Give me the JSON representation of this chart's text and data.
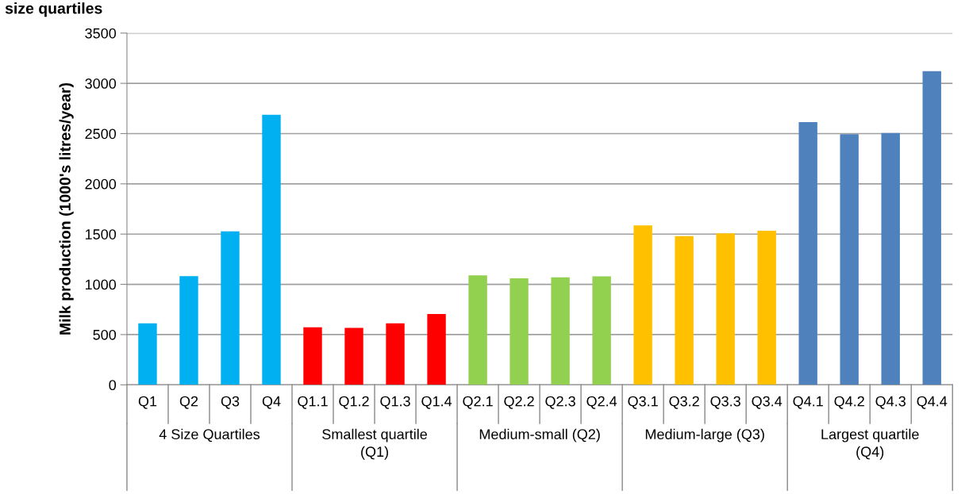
{
  "chart_data": {
    "type": "bar",
    "title": "size quartiles",
    "ylabel": "Milk production (1000's litres/year)",
    "categories": [
      "Q1",
      "Q2",
      "Q3",
      "Q4",
      "Q1.1",
      "Q1.2",
      "Q1.3",
      "Q1.4",
      "Q2.1",
      "Q2.2",
      "Q2.3",
      "Q2.4",
      "Q3.1",
      "Q3.2",
      "Q3.3",
      "Q3.4",
      "Q4.1",
      "Q4.2",
      "Q4.3",
      "Q4.4"
    ],
    "values": [
      613,
      1082,
      1527,
      2688,
      573,
      566,
      613,
      705,
      1089,
      1060,
      1070,
      1080,
      1587,
      1479,
      1508,
      1534,
      2614,
      2493,
      2506,
      3121
    ],
    "colors": [
      "#00b0f0",
      "#00b0f0",
      "#00b0f0",
      "#00b0f0",
      "#ff0000",
      "#ff0000",
      "#ff0000",
      "#ff0000",
      "#92d050",
      "#92d050",
      "#92d050",
      "#92d050",
      "#ffc000",
      "#ffc000",
      "#ffc000",
      "#ffc000",
      "#4f81bd",
      "#4f81bd",
      "#4f81bd",
      "#4f81bd"
    ],
    "annotations": [
      "4 Size Quartiles",
      "Smallest quartile\n(Q1)",
      "Medium-small (Q2)",
      "Medium-large (Q3)",
      "Largest quartile\n(Q4)"
    ],
    "ylim": [
      0,
      3500
    ],
    "yticks": [
      0,
      500,
      1000,
      1500,
      2000,
      2500,
      3000,
      3500
    ],
    "grid": "y",
    "legend": false
  }
}
